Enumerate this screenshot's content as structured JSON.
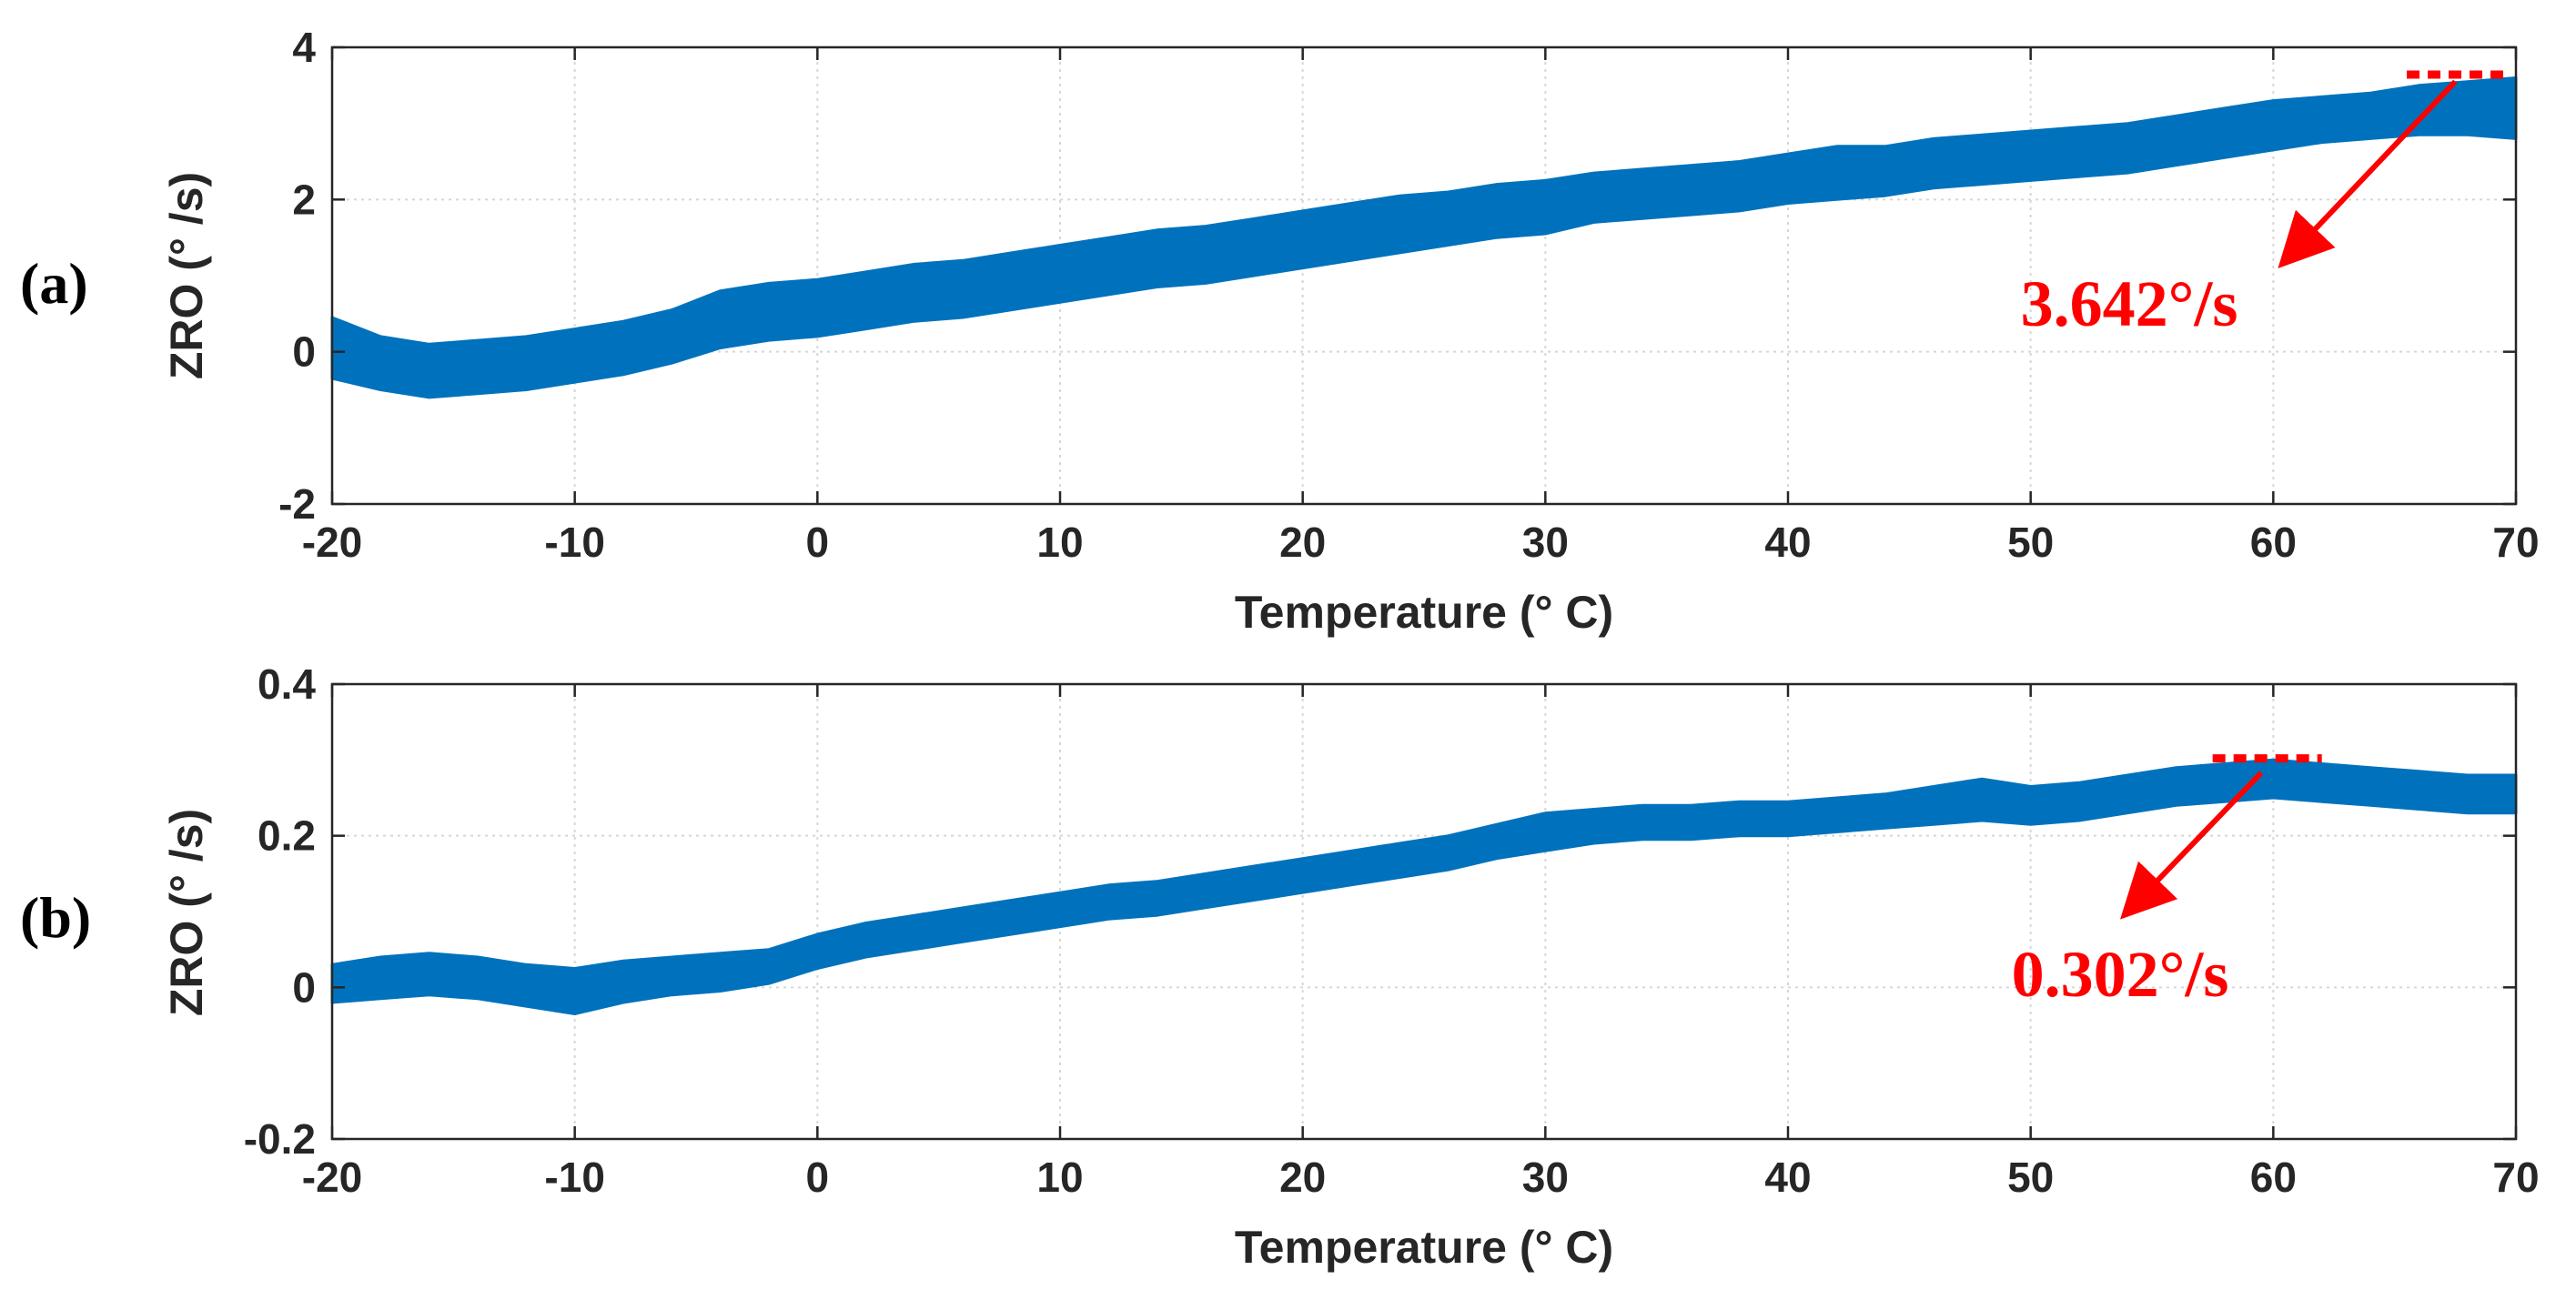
{
  "chart_data": [
    {
      "type": "area",
      "panel_label": "(a)",
      "xlabel": "Temperature (° C)",
      "ylabel": "ZRO (° /s)",
      "xlim": [
        -20,
        70
      ],
      "ylim": [
        -2,
        4
      ],
      "xticks": [
        "-20",
        "-10",
        "0",
        "10",
        "20",
        "30",
        "40",
        "50",
        "60",
        "70"
      ],
      "yticks": [
        "-2",
        "0",
        "2",
        "4"
      ],
      "grid": true,
      "series": [
        {
          "name": "ZRO band",
          "color": "#0072BD",
          "x": [
            -20,
            -18,
            -16,
            -14,
            -12,
            -10,
            -8,
            -6,
            -4,
            -2,
            0,
            2,
            4,
            6,
            8,
            10,
            12,
            14,
            16,
            18,
            20,
            22,
            24,
            26,
            28,
            30,
            32,
            34,
            36,
            38,
            40,
            42,
            44,
            46,
            48,
            50,
            52,
            54,
            56,
            58,
            60,
            62,
            64,
            66,
            68,
            70
          ],
          "upper": [
            0.45,
            0.2,
            0.1,
            0.15,
            0.2,
            0.3,
            0.4,
            0.55,
            0.8,
            0.9,
            0.95,
            1.05,
            1.15,
            1.2,
            1.3,
            1.4,
            1.5,
            1.6,
            1.65,
            1.75,
            1.85,
            1.95,
            2.05,
            2.1,
            2.2,
            2.25,
            2.35,
            2.4,
            2.45,
            2.5,
            2.6,
            2.7,
            2.7,
            2.8,
            2.85,
            2.9,
            2.95,
            3.0,
            3.1,
            3.2,
            3.3,
            3.35,
            3.4,
            3.5,
            3.55,
            3.6
          ],
          "lower": [
            -0.35,
            -0.5,
            -0.6,
            -0.55,
            -0.5,
            -0.4,
            -0.3,
            -0.15,
            0.05,
            0.15,
            0.2,
            0.3,
            0.4,
            0.45,
            0.55,
            0.65,
            0.75,
            0.85,
            0.9,
            1.0,
            1.1,
            1.2,
            1.3,
            1.4,
            1.5,
            1.55,
            1.7,
            1.75,
            1.8,
            1.85,
            1.95,
            2.0,
            2.05,
            2.15,
            2.2,
            2.25,
            2.3,
            2.35,
            2.45,
            2.55,
            2.65,
            2.75,
            2.8,
            2.85,
            2.85,
            2.8
          ]
        }
      ],
      "annotation": {
        "text": "3.642°/s",
        "value": 3.642,
        "color": "#FF0000",
        "marker_x": [
          65.5,
          69.8
        ],
        "arrow_from": [
          67.5,
          3.55
        ],
        "arrow_to": [
          60.5,
          1.2
        ]
      }
    },
    {
      "type": "area",
      "panel_label": "(b)",
      "xlabel": "Temperature (° C)",
      "ylabel": "ZRO (° /s)",
      "xlim": [
        -20,
        70
      ],
      "ylim": [
        -0.2,
        0.4
      ],
      "xticks": [
        "-20",
        "-10",
        "0",
        "10",
        "20",
        "30",
        "40",
        "50",
        "60",
        "70"
      ],
      "yticks": [
        "-0.2",
        "0",
        "0.2",
        "0.4"
      ],
      "grid": true,
      "series": [
        {
          "name": "ZRO band",
          "color": "#0072BD",
          "x": [
            -20,
            -18,
            -16,
            -14,
            -12,
            -10,
            -8,
            -6,
            -4,
            -2,
            0,
            2,
            4,
            6,
            8,
            10,
            12,
            14,
            16,
            18,
            20,
            22,
            24,
            26,
            28,
            30,
            32,
            34,
            36,
            38,
            40,
            42,
            44,
            46,
            48,
            50,
            52,
            54,
            56,
            58,
            60,
            62,
            64,
            66,
            68,
            70
          ],
          "upper": [
            0.03,
            0.04,
            0.045,
            0.04,
            0.03,
            0.025,
            0.035,
            0.04,
            0.045,
            0.05,
            0.07,
            0.085,
            0.095,
            0.105,
            0.115,
            0.125,
            0.135,
            0.14,
            0.15,
            0.16,
            0.17,
            0.18,
            0.19,
            0.2,
            0.215,
            0.23,
            0.235,
            0.24,
            0.24,
            0.245,
            0.245,
            0.25,
            0.255,
            0.265,
            0.275,
            0.265,
            0.27,
            0.28,
            0.29,
            0.295,
            0.3,
            0.295,
            0.29,
            0.285,
            0.28,
            0.28
          ],
          "lower": [
            -0.02,
            -0.015,
            -0.01,
            -0.015,
            -0.025,
            -0.035,
            -0.02,
            -0.01,
            -0.005,
            0.005,
            0.025,
            0.04,
            0.05,
            0.06,
            0.07,
            0.08,
            0.09,
            0.095,
            0.105,
            0.115,
            0.125,
            0.135,
            0.145,
            0.155,
            0.17,
            0.18,
            0.19,
            0.195,
            0.195,
            0.2,
            0.2,
            0.205,
            0.21,
            0.215,
            0.22,
            0.215,
            0.22,
            0.23,
            0.24,
            0.245,
            0.25,
            0.245,
            0.24,
            0.235,
            0.23,
            0.23
          ]
        }
      ],
      "annotation": {
        "text": "0.302°/s",
        "value": 0.302,
        "color": "#FF0000",
        "marker_x": [
          57.5,
          62
        ],
        "arrow_from": [
          59.5,
          0.283
        ],
        "arrow_to": [
          54,
          0.1
        ]
      }
    }
  ]
}
